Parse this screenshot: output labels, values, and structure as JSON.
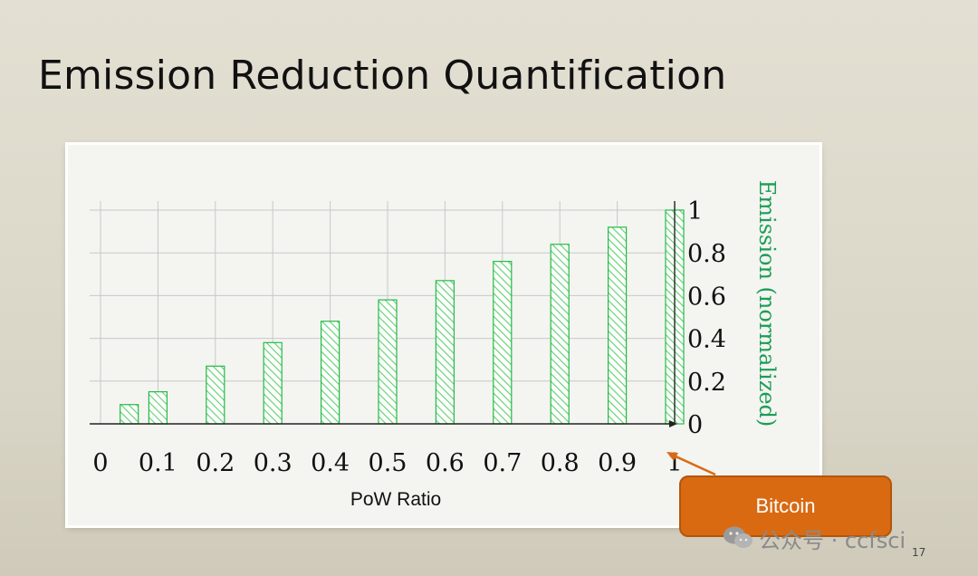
{
  "slide": {
    "title": "Emission Reduction Quantification",
    "page_number": "17"
  },
  "callout": {
    "label": "Bitcoin"
  },
  "watermark": {
    "text": "公众号 · ccfsci",
    "icon": "wechat-icon"
  },
  "colors": {
    "bar_stroke": "#22bb44",
    "bar_hatch": "#5ad16a",
    "axis_label_right": "#1a9e55",
    "callout_bg": "#d96a12",
    "arrow": "#d96a12"
  },
  "chart_data": {
    "type": "bar",
    "xlabel": "PoW Ratio",
    "ylabel": "Emission (normalized)",
    "y_axis_side": "right",
    "xlim": [
      0,
      1
    ],
    "ylim": [
      0,
      1
    ],
    "grid": true,
    "x_ticks": [
      "0",
      "0.1",
      "0.2",
      "0.3",
      "0.4",
      "0.5",
      "0.6",
      "0.7",
      "0.8",
      "0.9",
      "1"
    ],
    "y_ticks": [
      "0",
      "0.2",
      "0.4",
      "0.6",
      "0.8",
      "1"
    ],
    "series": [
      {
        "x": [
          0.05,
          0.1,
          0.2,
          0.3,
          0.4,
          0.5,
          0.6,
          0.7,
          0.8,
          0.9,
          1.0
        ],
        "values": [
          0.09,
          0.15,
          0.27,
          0.38,
          0.48,
          0.58,
          0.67,
          0.76,
          0.84,
          0.92,
          1.0
        ]
      }
    ],
    "annotations": [
      {
        "text": "Bitcoin",
        "points_to_x": 1.0
      }
    ]
  }
}
